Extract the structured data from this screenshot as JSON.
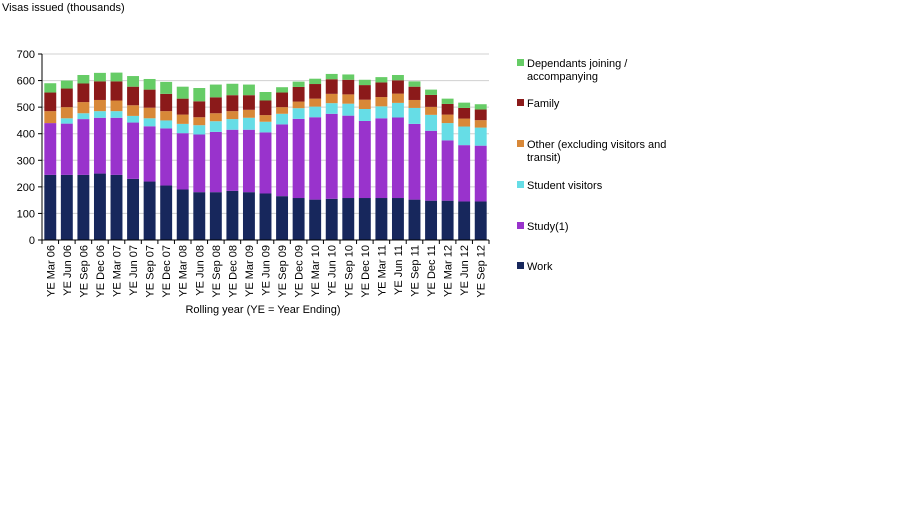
{
  "chart_data": {
    "type": "bar",
    "stacked": true,
    "ylabel": "Visas issued (thousands)",
    "xlabel": "Rolling year (YE = Year Ending)",
    "ylim": [
      0,
      700
    ],
    "yticks": [
      0,
      100,
      200,
      300,
      400,
      500,
      600,
      700
    ],
    "grid": true,
    "legend_position": "right",
    "categories": [
      "YE Mar 06",
      "YE Jun 06",
      "YE Sep 06",
      "YE Dec 06",
      "YE Mar 07",
      "YE Jun 07",
      "YE Sep 07",
      "YE Dec 07",
      "YE Mar 08",
      "YE Jun 08",
      "YE Sep 08",
      "YE Dec 08",
      "YE Mar 09",
      "YE Jun 09",
      "YE Sep 09",
      "YE Dec 09",
      "YE Mar 10",
      "YE Jun 10",
      "YE Sep 10",
      "YE Dec 10",
      "YE Mar 11",
      "YE Jun 11",
      "YE Sep 11",
      "YE Dec 11",
      "YE Mar 12",
      "YE Jun 12",
      "YE Sep 12"
    ],
    "series": [
      {
        "name": "Work",
        "color": "#17275C",
        "values": [
          245,
          245,
          245,
          250,
          245,
          230,
          220,
          205,
          190,
          180,
          180,
          185,
          180,
          175,
          165,
          158,
          152,
          155,
          158,
          158,
          158,
          158,
          152,
          148,
          148,
          145,
          145
        ]
      },
      {
        "name": "Study(1)",
        "color": "#9933CC",
        "values": [
          195,
          193,
          210,
          210,
          215,
          212,
          208,
          215,
          212,
          217,
          227,
          230,
          235,
          230,
          270,
          298,
          310,
          320,
          310,
          290,
          300,
          303,
          285,
          263,
          227,
          212,
          210
        ]
      },
      {
        "name": "Student visitors",
        "color": "#66DDE6",
        "values": [
          0,
          20,
          22,
          25,
          25,
          25,
          30,
          30,
          35,
          35,
          40,
          40,
          45,
          40,
          40,
          40,
          40,
          40,
          45,
          45,
          45,
          55,
          60,
          60,
          65,
          70,
          68
        ]
      },
      {
        "name": "Other (excluding visitors and transit)",
        "color": "#D88838",
        "values": [
          45,
          42,
          42,
          42,
          40,
          40,
          40,
          35,
          35,
          30,
          30,
          30,
          30,
          25,
          25,
          25,
          30,
          35,
          35,
          35,
          35,
          35,
          30,
          30,
          32,
          30,
          28
        ]
      },
      {
        "name": "Family",
        "color": "#8B1A1A",
        "values": [
          70,
          70,
          70,
          70,
          72,
          70,
          68,
          65,
          60,
          60,
          60,
          60,
          55,
          55,
          55,
          55,
          55,
          55,
          55,
          55,
          55,
          50,
          50,
          45,
          40,
          40,
          40
        ]
      },
      {
        "name": "Dependants joining / accompanying",
        "color": "#66CC66",
        "values": [
          35,
          30,
          32,
          32,
          33,
          40,
          40,
          45,
          45,
          50,
          48,
          43,
          40,
          32,
          20,
          20,
          20,
          20,
          20,
          20,
          20,
          20,
          20,
          20,
          20,
          20,
          20
        ]
      }
    ]
  }
}
